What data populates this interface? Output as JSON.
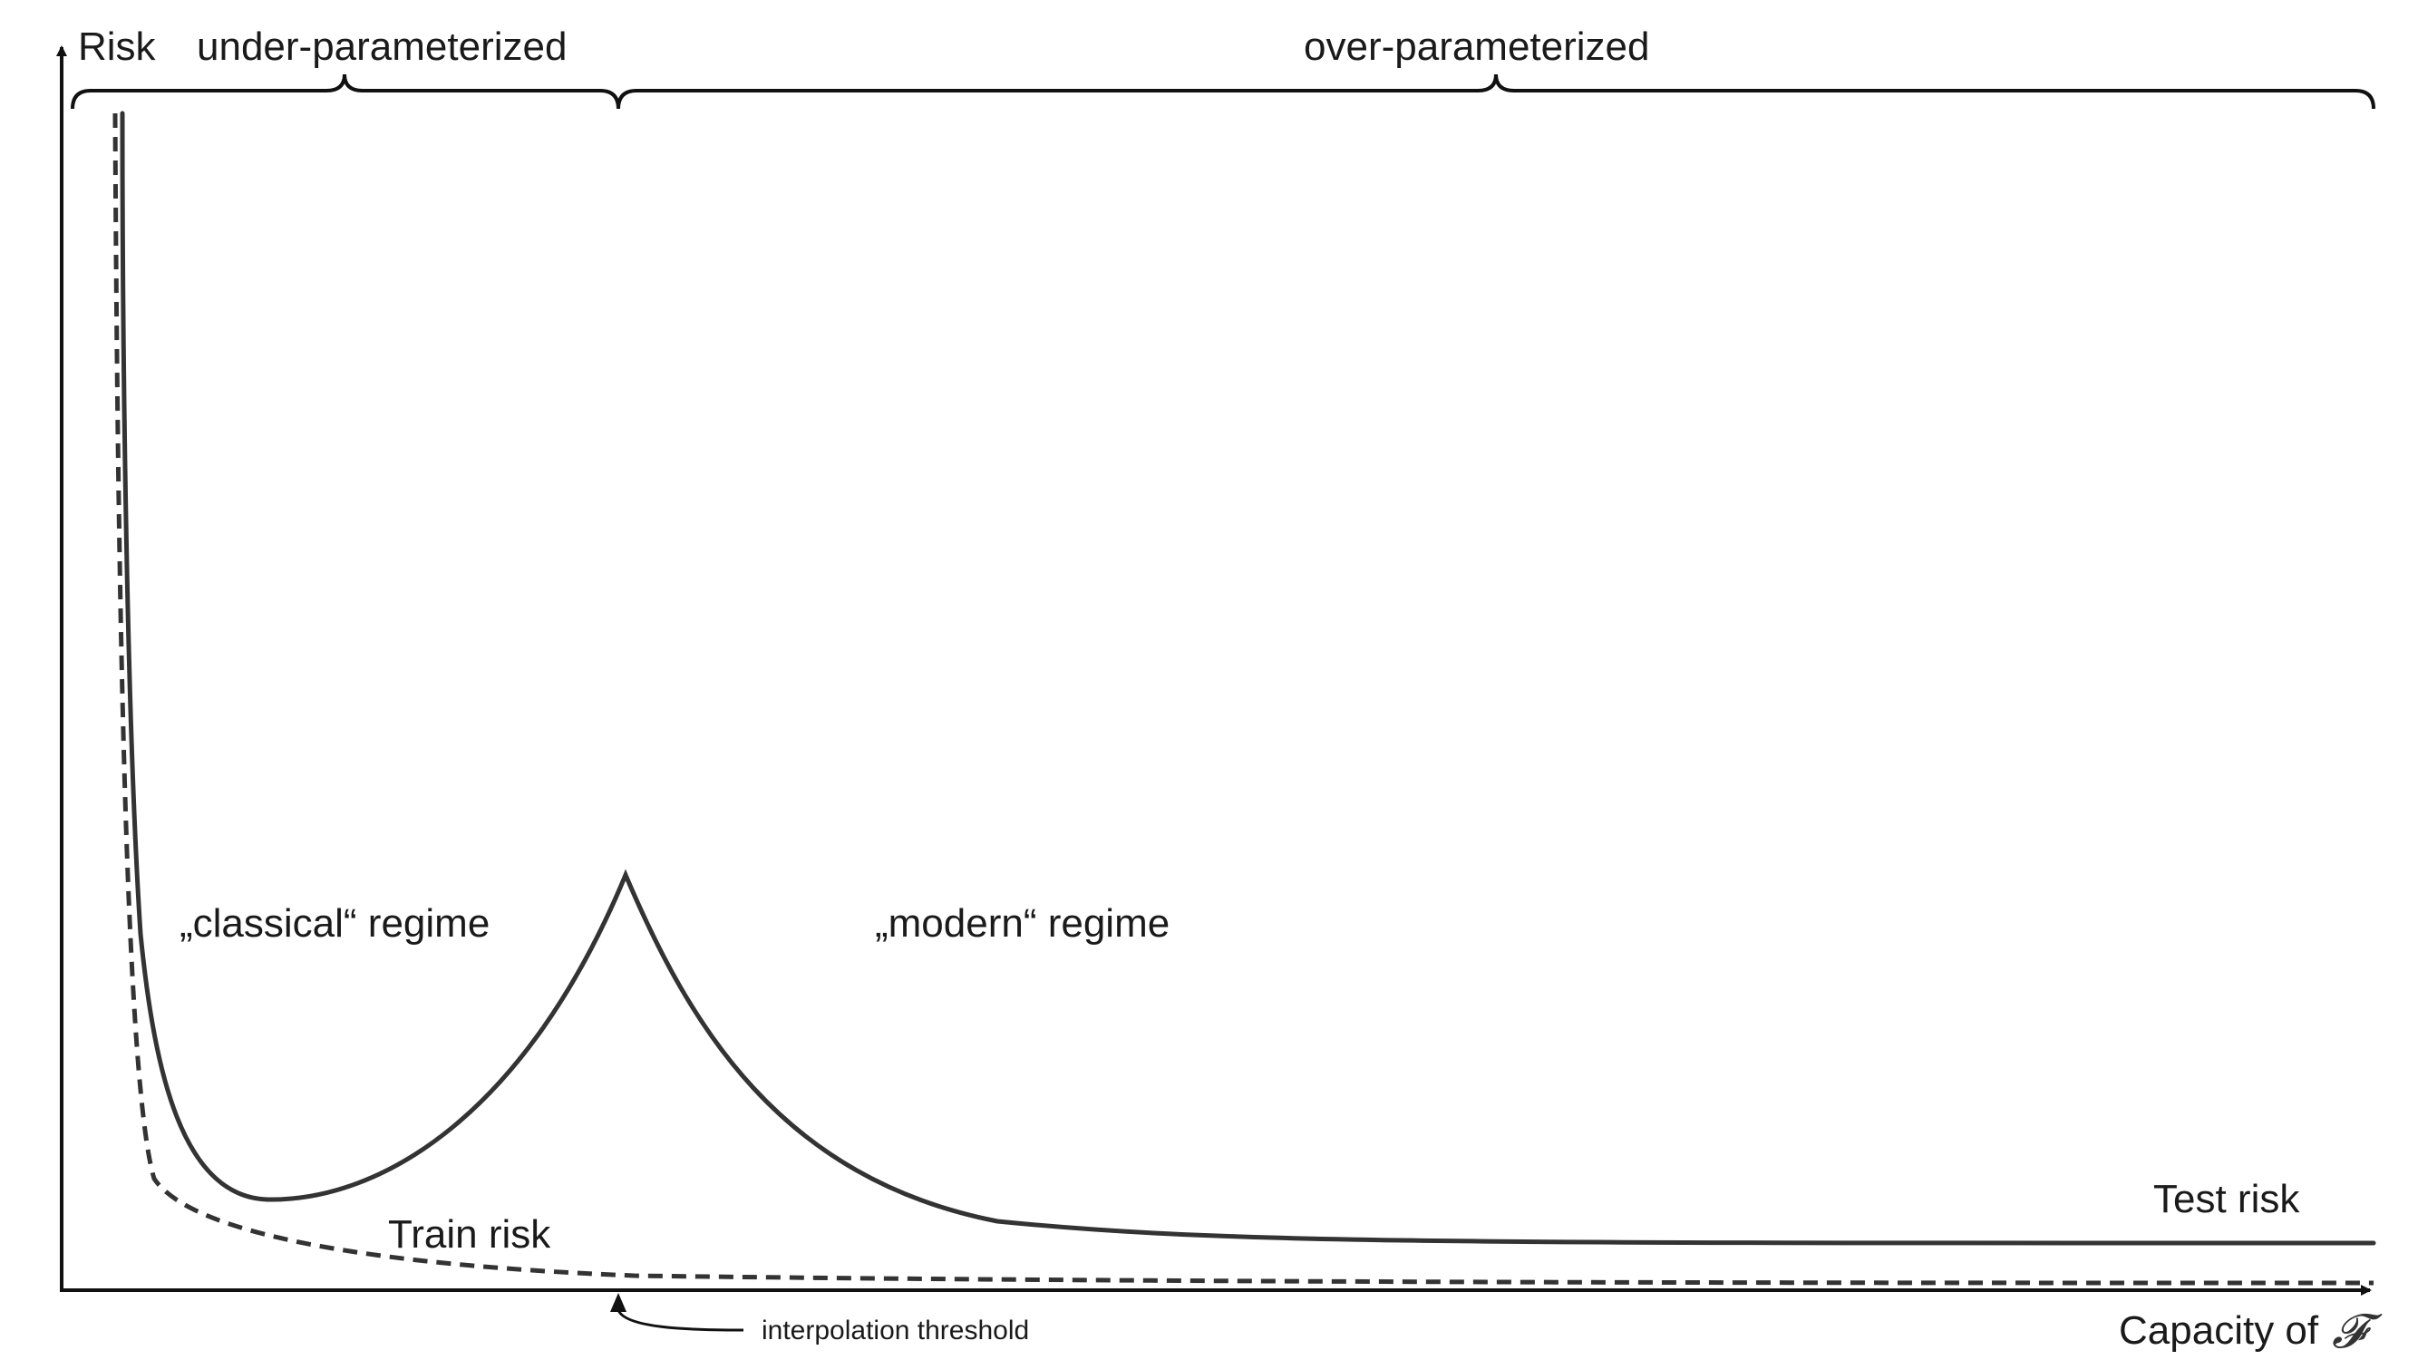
{
  "labels": {
    "y_axis": "Risk",
    "x_axis": "Capacity of",
    "x_axis_symbol": "𝓕",
    "under": "under-parameterized",
    "over": "over-parameterized",
    "classical": "„classical“ regime",
    "modern": "„modern“ regime",
    "train": "Train risk",
    "test": "Test risk",
    "threshold": "interpolation threshold"
  },
  "colors": {
    "curve": "#333333",
    "axis": "#111111",
    "text": "#1a1a1a"
  },
  "styles": {
    "test_curve": "solid",
    "train_curve": "dashed"
  }
}
